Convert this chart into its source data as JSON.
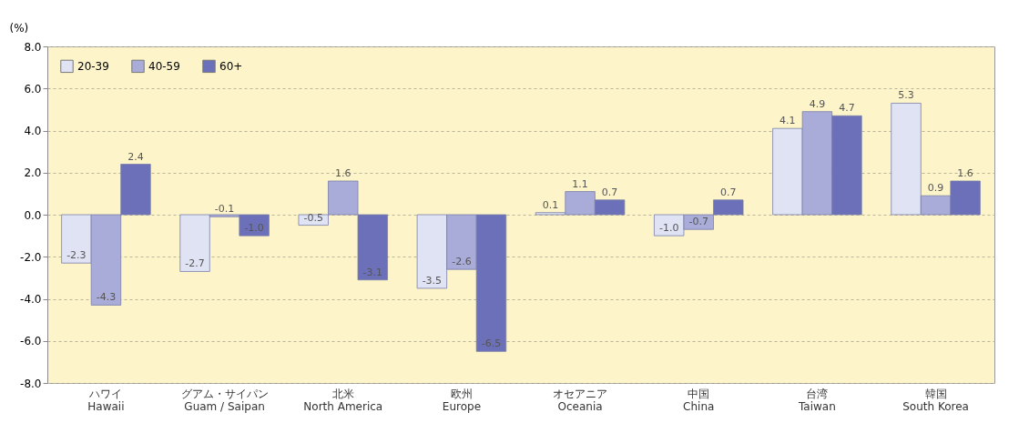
{
  "chart_data": {
    "type": "bar",
    "ylabel": "(%)",
    "categories": [
      "ハワイ\nHawaii",
      "グアム・サイパン\nGuam / Saipan",
      "北米\nNorth America",
      "欧州\nEurope",
      "オセアニア\nOceania",
      "中国\nChina",
      "台湾\nTaiwan",
      "韓国\nSouth Korea"
    ],
    "series": [
      {
        "name": "20-39",
        "color": "#dfe3f3",
        "values": [
          -2.3,
          -2.7,
          -0.5,
          -3.5,
          0.1,
          -1.0,
          4.1,
          5.3
        ],
        "value_labels": [
          "-2.3",
          "-2.7",
          "-0.5",
          "-3.5",
          "0.1",
          "-1.0",
          "4.1",
          "5.3"
        ]
      },
      {
        "name": "40-59",
        "color": "#a9acd8",
        "values": [
          -4.3,
          -0.1,
          1.6,
          -2.6,
          1.1,
          -0.7,
          4.9,
          0.9
        ],
        "value_labels": [
          "-4.3",
          "-0.1",
          "1.6",
          "-2.6",
          "1.1",
          "-0.7",
          "4.9",
          "0.9"
        ]
      },
      {
        "name": "60+",
        "color": "#6b70b9",
        "values": [
          2.4,
          -1.0,
          -3.1,
          -6.5,
          0.7,
          0.7,
          4.7,
          1.6
        ],
        "value_labels": [
          "2.4",
          "-1.0",
          "-3.1",
          "-6.5",
          "0.7",
          "0.7",
          "4.7",
          "1.6"
        ]
      }
    ],
    "ylim": [
      -8,
      8
    ],
    "yticks": [
      {
        "value": -8,
        "label": "-8.0"
      },
      {
        "value": -6,
        "label": "-6.0"
      },
      {
        "value": -4,
        "label": "-4.0"
      },
      {
        "value": -2,
        "label": "-2.0"
      },
      {
        "value": 0,
        "label": "0.0"
      },
      {
        "value": 2,
        "label": "2.0"
      },
      {
        "value": 4,
        "label": "4.0"
      },
      {
        "value": 6,
        "label": "6.0"
      },
      {
        "value": 8,
        "label": "8.0"
      }
    ],
    "grid": "y",
    "legend": "top left"
  }
}
